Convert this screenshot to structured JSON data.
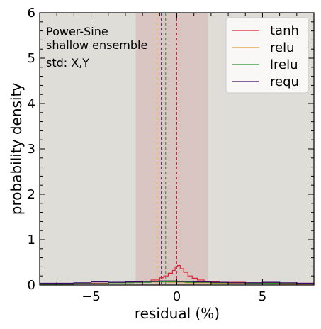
{
  "chart_data": {
    "type": "line",
    "xlabel": "residual (%)",
    "ylabel": "probability density",
    "xlim": [
      -8,
      8
    ],
    "ylim": [
      0,
      6
    ],
    "grid": false,
    "x_ticks": [
      -5,
      0,
      5
    ],
    "x_tick_labels": [
      "−5",
      "0",
      "5"
    ],
    "y_ticks": [
      0,
      1,
      2,
      3,
      4,
      5,
      6
    ],
    "y_tick_labels": [
      "0",
      "1",
      "2",
      "3",
      "4",
      "5",
      "6"
    ],
    "annotations": [
      "Power-Sine",
      "shallow ensemble",
      "std: X,Y"
    ],
    "legend_position": "top-right",
    "background_color": "#dfddd8",
    "shaded_band": {
      "x_range": [
        -2.4,
        1.8
      ],
      "color": "#d9c6c3"
    },
    "series": [
      {
        "name": "tanh",
        "color": "#e0203a",
        "mean": 0.0,
        "bins": [
          [
            -8,
            0.03
          ],
          [
            -6,
            0.04
          ],
          [
            -4,
            0.05
          ],
          [
            -3,
            0.06
          ],
          [
            -2,
            0.08
          ],
          [
            -1.5,
            0.11
          ],
          [
            -1,
            0.16
          ],
          [
            -0.75,
            0.2
          ],
          [
            -0.5,
            0.26
          ],
          [
            -0.25,
            0.32
          ],
          [
            -0.1,
            0.4
          ],
          [
            0.05,
            0.43
          ],
          [
            0.2,
            0.36
          ],
          [
            0.4,
            0.28
          ],
          [
            0.65,
            0.2
          ],
          [
            0.9,
            0.15
          ],
          [
            1.2,
            0.11
          ],
          [
            1.6,
            0.08
          ],
          [
            2.5,
            0.06
          ],
          [
            4,
            0.05
          ],
          [
            6,
            0.04
          ],
          [
            8,
            0.03
          ]
        ]
      },
      {
        "name": "relu",
        "color": "#e0a030",
        "mean": -1.15,
        "bins": [
          [
            -8,
            0.02
          ],
          [
            -6,
            0.03
          ],
          [
            -4,
            0.05
          ],
          [
            -2.5,
            0.06
          ],
          [
            -1.5,
            0.07
          ],
          [
            -0.5,
            0.06
          ],
          [
            0.5,
            0.05
          ],
          [
            2,
            0.04
          ],
          [
            4,
            0.03
          ],
          [
            6,
            0.02
          ],
          [
            8,
            0.02
          ]
        ]
      },
      {
        "name": "lrelu",
        "color": "#2a8a2a",
        "mean": -0.65,
        "bins": [
          [
            -8,
            0.02
          ],
          [
            -6,
            0.03
          ],
          [
            -4,
            0.05
          ],
          [
            -2.5,
            0.06
          ],
          [
            -1.5,
            0.07
          ],
          [
            -0.5,
            0.07
          ],
          [
            0.5,
            0.06
          ],
          [
            2,
            0.05
          ],
          [
            4,
            0.04
          ],
          [
            6,
            0.03
          ],
          [
            8,
            0.02
          ]
        ]
      },
      {
        "name": "requ",
        "color": "#3a0a6a",
        "mean": -0.9,
        "bins": [
          [
            -8,
            0.04
          ],
          [
            -6,
            0.05
          ],
          [
            -5,
            0.07
          ],
          [
            -4,
            0.06
          ],
          [
            -3,
            0.07
          ],
          [
            -2,
            0.08
          ],
          [
            -1,
            0.09
          ],
          [
            0,
            0.08
          ],
          [
            1,
            0.07
          ],
          [
            2,
            0.06
          ],
          [
            3,
            0.05
          ],
          [
            4,
            0.05
          ],
          [
            5,
            0.06
          ],
          [
            6,
            0.05
          ],
          [
            7,
            0.04
          ],
          [
            8,
            0.04
          ]
        ]
      }
    ]
  }
}
